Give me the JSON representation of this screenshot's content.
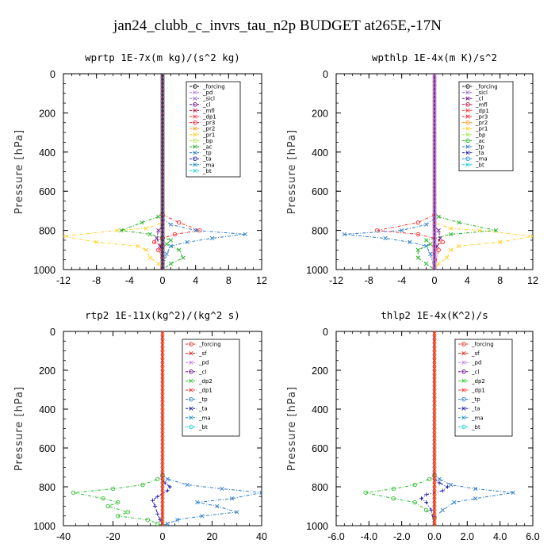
{
  "figure": {
    "title": "jan24_clubb_c_invrs_tau_n2p  BUDGET at265E,-17N"
  },
  "colors": {
    "_forcing": "#1a1a1a",
    "_pd": "#c080e0",
    "_sicl": "#9a70d8",
    "_cl": "#6a0f8a",
    "_mfl": "#c0103a",
    "_dp1": "#ff3030",
    "_pr3": "#e82030",
    "_pr2": "#ff9a20",
    "_pr1": "#ffd020",
    "_bp": "#b0e050",
    "_ac": "#20b020",
    "_tp": "#2a7ac8",
    "_ta": "#2020b0",
    "_ma": "#2090d0",
    "_bt": "#20d0d0",
    "_sf": "#e02020",
    "_dp2": "#30c030",
    "_forcing_rt": "#e03030"
  },
  "chart_data": [
    {
      "type": "line",
      "title": "wprtp  1E-7x(m kg)/(s^2 kg)",
      "ylabel": "Pressure [hPa]",
      "xlim": [
        -12,
        12
      ],
      "ylim": [
        1000,
        0
      ],
      "xticks": [
        "-12",
        "-8",
        "-4",
        "0",
        "4",
        "8",
        "12"
      ],
      "yticks": [
        "0",
        "200",
        "400",
        "600",
        "800",
        "1000"
      ],
      "legend": [
        "_forcing",
        "_pd",
        "_sicl",
        "_cl",
        "_mfl",
        "_dp1",
        "_pr3",
        "_pr2",
        "_pr1",
        "_bp",
        "_ac",
        "_tp",
        "_ta",
        "_ma",
        "_bt"
      ],
      "series": [
        {
          "name": "_pr1",
          "color_key": "_pr1",
          "marker": "x",
          "points": [
            [
              0,
              700
            ],
            [
              0,
              760
            ],
            [
              -2,
              790
            ],
            [
              -5.5,
              800
            ],
            [
              -12,
              830
            ],
            [
              -8,
              860
            ],
            [
              -3,
              880
            ],
            [
              -2,
              900
            ],
            [
              -1.5,
              940
            ],
            [
              -0.5,
              970
            ],
            [
              0,
              1000
            ]
          ]
        },
        {
          "name": "_ac",
          "color_key": "_ac",
          "marker": "x",
          "points": [
            [
              0,
              700
            ],
            [
              -0.5,
              730
            ],
            [
              -2.5,
              760
            ],
            [
              -5,
              800
            ],
            [
              -1.5,
              820
            ],
            [
              1,
              850
            ],
            [
              0.5,
              870
            ],
            [
              2,
              900
            ],
            [
              2.5,
              940
            ],
            [
              1,
              970
            ],
            [
              0,
              1000
            ]
          ]
        },
        {
          "name": "_dp1",
          "color_key": "_dp1",
          "marker": "o",
          "points": [
            [
              0,
              720
            ],
            [
              2,
              760
            ],
            [
              4.5,
              800
            ],
            [
              1.5,
              820
            ],
            [
              0,
              840
            ],
            [
              -1,
              860
            ],
            [
              0,
              880
            ],
            [
              -0.5,
              900
            ],
            [
              0,
              940
            ],
            [
              0,
              1000
            ]
          ]
        },
        {
          "name": "_tp",
          "color_key": "_tp",
          "marker": "x",
          "points": [
            [
              0,
              740
            ],
            [
              1,
              770
            ],
            [
              4,
              800
            ],
            [
              10,
              820
            ],
            [
              6,
              840
            ],
            [
              3,
              860
            ],
            [
              1,
              880
            ],
            [
              0.5,
              920
            ],
            [
              0,
              1000
            ]
          ]
        },
        {
          "name": "_cl",
          "color_key": "_cl",
          "marker": "x",
          "points": [
            [
              0,
              780
            ],
            [
              -0.5,
              800
            ],
            [
              -0.7,
              840
            ],
            [
              -0.3,
              880
            ],
            [
              0,
              920
            ],
            [
              0,
              1000
            ]
          ]
        }
      ]
    },
    {
      "type": "line",
      "title": "wpthlp  1E-4x(m K)/s^2",
      "ylabel": "Pressure [hPa]",
      "xlim": [
        -12,
        12
      ],
      "ylim": [
        1000,
        0
      ],
      "xticks": [
        "-12",
        "-8",
        "-4",
        "0",
        "4",
        "8",
        "12"
      ],
      "yticks": [
        "0",
        "200",
        "400",
        "600",
        "800",
        "1000"
      ],
      "legend": [
        "_forcing",
        "_sicl",
        "_cl",
        "_mfl",
        "_dp1",
        "_pr3",
        "_pr2",
        "_pr1",
        "_bp",
        "_ac",
        "_tp",
        "_ta",
        "_ma",
        "_bt"
      ],
      "series": [
        {
          "name": "_pr1",
          "color_key": "_pr1",
          "marker": "x",
          "points": [
            [
              0,
              700
            ],
            [
              0,
              760
            ],
            [
              2,
              790
            ],
            [
              5.5,
              800
            ],
            [
              12,
              830
            ],
            [
              8,
              860
            ],
            [
              3,
              880
            ],
            [
              2,
              900
            ],
            [
              1.5,
              940
            ],
            [
              0.5,
              970
            ],
            [
              0,
              1000
            ]
          ]
        },
        {
          "name": "_ac",
          "color_key": "_ac",
          "marker": "x",
          "points": [
            [
              0,
              700
            ],
            [
              0.5,
              730
            ],
            [
              3,
              760
            ],
            [
              7.5,
              800
            ],
            [
              2,
              820
            ],
            [
              -1,
              850
            ],
            [
              -0.5,
              870
            ],
            [
              -2,
              900
            ],
            [
              -2,
              940
            ],
            [
              -1,
              970
            ],
            [
              0,
              1000
            ]
          ]
        },
        {
          "name": "_dp1",
          "color_key": "_dp1",
          "marker": "o",
          "points": [
            [
              0,
              720
            ],
            [
              -2,
              760
            ],
            [
              -7,
              800
            ],
            [
              -2,
              820
            ],
            [
              0,
              840
            ],
            [
              1,
              860
            ],
            [
              0,
              880
            ],
            [
              0.5,
              900
            ],
            [
              0,
              1000
            ]
          ]
        },
        {
          "name": "_tp",
          "color_key": "_tp",
          "marker": "x",
          "points": [
            [
              0,
              740
            ],
            [
              -1,
              770
            ],
            [
              -4,
              800
            ],
            [
              -11,
              820
            ],
            [
              -6,
              840
            ],
            [
              -3,
              860
            ],
            [
              -1,
              880
            ],
            [
              -0.5,
              920
            ],
            [
              0,
              1000
            ]
          ]
        },
        {
          "name": "_cl",
          "color_key": "_cl",
          "marker": "x",
          "points": [
            [
              0,
              780
            ],
            [
              0.5,
              800
            ],
            [
              0.7,
              840
            ],
            [
              0.3,
              880
            ],
            [
              0,
              920
            ],
            [
              0,
              1000
            ]
          ]
        }
      ]
    },
    {
      "type": "line",
      "title": "rtp2  1E-11x(kg^2)/(kg^2 s)",
      "ylabel": "Pressure [hPa]",
      "xlim": [
        -40,
        40
      ],
      "ylim": [
        1000,
        0
      ],
      "xticks": [
        "-40",
        "-20",
        "0",
        "20",
        "40"
      ],
      "yticks": [
        "0",
        "200",
        "400",
        "600",
        "800",
        "1000"
      ],
      "legend": [
        "_forcing",
        "_sf",
        "_pd",
        "_cl",
        "_dp2",
        "_dp1",
        "_tp",
        "_ta",
        "_ma",
        "_bt"
      ],
      "series": [
        {
          "name": "_dp1",
          "color_key": "_dp2",
          "marker": "o",
          "points": [
            [
              0,
              740
            ],
            [
              -2,
              760
            ],
            [
              -8,
              790
            ],
            [
              -20,
              810
            ],
            [
              -36,
              830
            ],
            [
              -24,
              860
            ],
            [
              -18,
              880
            ],
            [
              -22,
              900
            ],
            [
              -14,
              930
            ],
            [
              -18,
              950
            ],
            [
              -6,
              970
            ],
            [
              -2,
              990
            ],
            [
              0,
              1000
            ]
          ]
        },
        {
          "name": "_tp",
          "color_key": "_tp",
          "marker": "x",
          "points": [
            [
              0,
              740
            ],
            [
              2,
              760
            ],
            [
              10,
              790
            ],
            [
              24,
              810
            ],
            [
              40,
              830
            ],
            [
              28,
              860
            ],
            [
              14,
              880
            ],
            [
              22,
              900
            ],
            [
              30,
              930
            ],
            [
              16,
              950
            ],
            [
              6,
              970
            ],
            [
              2,
              990
            ],
            [
              0,
              1000
            ]
          ]
        },
        {
          "name": "_ta",
          "color_key": "_ta",
          "marker": "+",
          "points": [
            [
              0,
              760
            ],
            [
              1,
              780
            ],
            [
              3,
              800
            ],
            [
              2,
              820
            ],
            [
              -2,
              850
            ],
            [
              -4,
              870
            ],
            [
              -3,
              900
            ],
            [
              -2,
              940
            ],
            [
              -1,
              970
            ],
            [
              0,
              1000
            ]
          ]
        }
      ]
    },
    {
      "type": "line",
      "title": "thlp2  1E-4x(K^2)/s",
      "ylabel": "Pressure [hPa]",
      "xlim": [
        -6,
        6
      ],
      "ylim": [
        1000,
        0
      ],
      "xticks": [
        "-6.0",
        "-4.0",
        "-2.0",
        "0.0",
        "2.0",
        "4.0",
        "6.0"
      ],
      "yticks": [
        "0",
        "200",
        "400",
        "600",
        "800",
        "1000"
      ],
      "legend": [
        "_forcing",
        "_sf",
        "_pd",
        "_cl",
        "_dp2",
        "_dp1",
        "_tp",
        "_ta",
        "_ma",
        "_bt"
      ],
      "series": [
        {
          "name": "_dp1",
          "color_key": "_dp2",
          "marker": "o",
          "points": [
            [
              0,
              740
            ],
            [
              -0.3,
              760
            ],
            [
              -1.2,
              790
            ],
            [
              -2.5,
              810
            ],
            [
              -4.2,
              830
            ],
            [
              -2.5,
              860
            ],
            [
              -1.2,
              880
            ],
            [
              -0.5,
              920
            ],
            [
              0,
              960
            ],
            [
              0,
              1000
            ]
          ]
        },
        {
          "name": "_tp",
          "color_key": "_tp",
          "marker": "x",
          "points": [
            [
              0,
              740
            ],
            [
              0.3,
              760
            ],
            [
              1,
              790
            ],
            [
              2.5,
              810
            ],
            [
              4.8,
              830
            ],
            [
              2.5,
              860
            ],
            [
              1.2,
              880
            ],
            [
              0.5,
              920
            ],
            [
              0,
              960
            ],
            [
              0,
              1000
            ]
          ]
        },
        {
          "name": "_ta",
          "color_key": "_ta",
          "marker": "+",
          "points": [
            [
              0,
              760
            ],
            [
              0.3,
              780
            ],
            [
              0.8,
              800
            ],
            [
              0.5,
              820
            ],
            [
              -0.5,
              840
            ],
            [
              -0.8,
              860
            ],
            [
              -0.5,
              880
            ],
            [
              -0.2,
              920
            ],
            [
              0,
              1000
            ]
          ]
        }
      ]
    }
  ]
}
